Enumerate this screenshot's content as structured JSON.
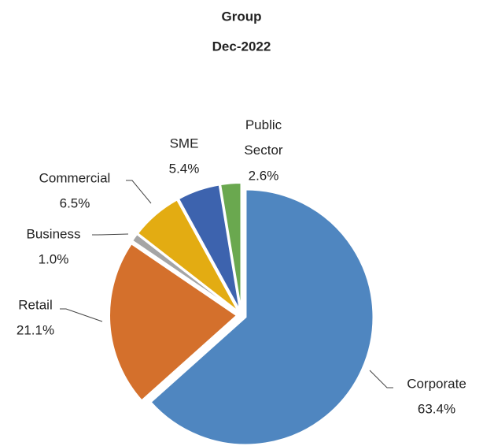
{
  "chart_data": {
    "type": "pie",
    "title": "Group",
    "subtitle": "Dec-2022",
    "categories": [
      "Corporate",
      "Retail",
      "Business",
      "Commercial",
      "SME",
      "Public Sector"
    ],
    "values": [
      63.4,
      21.1,
      1.0,
      6.5,
      5.4,
      2.6
    ],
    "value_labels": [
      "63.4%",
      "21.1%",
      "1.0%",
      "6.5%",
      "5.4%",
      "2.6%"
    ],
    "colors": [
      "#4f86c0",
      "#d4702c",
      "#a5a5a5",
      "#e3ac12",
      "#3d63ae",
      "#6aa84f"
    ]
  }
}
